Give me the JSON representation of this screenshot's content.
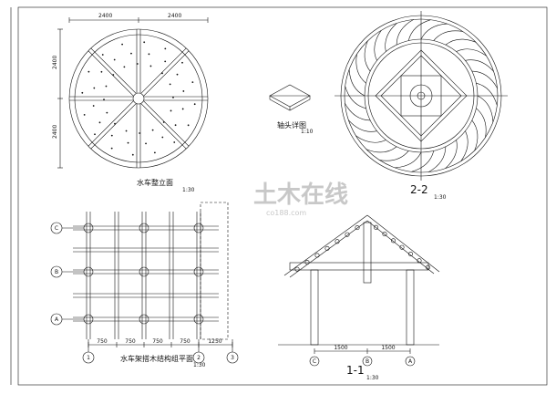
{
  "drawings": [
    {
      "title": "水车整立面",
      "scale": "1:30"
    },
    {
      "title": "轴头详图",
      "scale": "1:10"
    },
    {
      "title": "2-2",
      "scale": "1:30"
    },
    {
      "title": "水车架搭木结构组平面",
      "scale": "1:30"
    },
    {
      "title": "1-1",
      "scale": "1:30"
    }
  ],
  "dimensions": {
    "wheel_width": [
      "2400",
      "2400"
    ],
    "wheel_height": [
      "2400",
      "2400"
    ],
    "plan": [
      "750",
      "750",
      "750",
      "750",
      "1250"
    ],
    "section": [
      "1500",
      "1500"
    ]
  },
  "axes": {
    "rows": [
      "A",
      "B",
      "C"
    ],
    "cols": [
      "1",
      "2",
      "3"
    ]
  },
  "watermark": {
    "text": "土木在线",
    "url": "co188.com"
  }
}
